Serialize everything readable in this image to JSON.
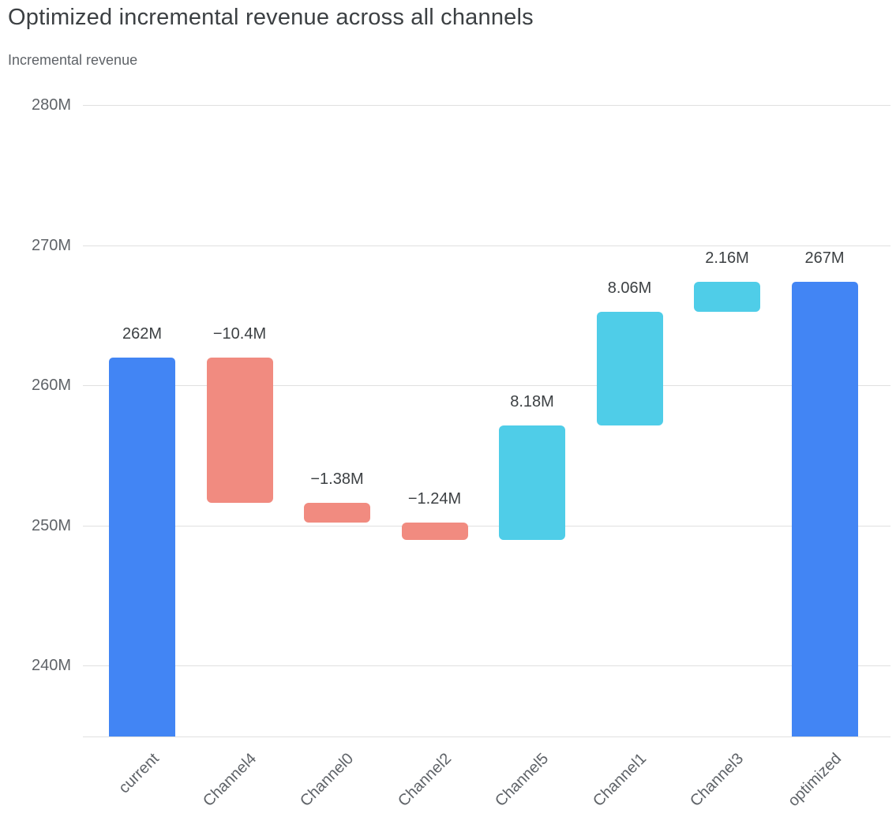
{
  "title": "Optimized incremental revenue across all channels",
  "subtitle": "Incremental revenue",
  "chart_data": {
    "type": "bar",
    "subtype": "waterfall",
    "title": "Optimized incremental revenue across all channels",
    "xlabel": "",
    "ylabel": "Incremental revenue",
    "unit": "M",
    "grid": true,
    "legend": null,
    "categories": [
      "current",
      "Channel4",
      "Channel0",
      "Channel2",
      "Channel5",
      "Channel1",
      "Channel3",
      "optimized"
    ],
    "bars": [
      {
        "category": "current",
        "role": "total",
        "start": 0,
        "end": 262,
        "value": 262,
        "label": "262M"
      },
      {
        "category": "Channel4",
        "role": "decrease",
        "start": 262,
        "end": 251.6,
        "value": -10.4,
        "label": "−10.4M"
      },
      {
        "category": "Channel0",
        "role": "decrease",
        "start": 251.6,
        "end": 250.22,
        "value": -1.38,
        "label": "−1.38M"
      },
      {
        "category": "Channel2",
        "role": "decrease",
        "start": 250.22,
        "end": 248.98,
        "value": -1.24,
        "label": "−1.24M"
      },
      {
        "category": "Channel5",
        "role": "increase",
        "start": 248.98,
        "end": 257.16,
        "value": 8.18,
        "label": "8.18M"
      },
      {
        "category": "Channel1",
        "role": "increase",
        "start": 257.16,
        "end": 265.22,
        "value": 8.06,
        "label": "8.06M"
      },
      {
        "category": "Channel3",
        "role": "increase",
        "start": 265.22,
        "end": 267.38,
        "value": 2.16,
        "label": "2.16M"
      },
      {
        "category": "optimized",
        "role": "total",
        "start": 0,
        "end": 267.38,
        "value": 267.38,
        "label": "267M"
      }
    ],
    "y_axis": {
      "ticks": [
        {
          "label": "280M",
          "value": 280
        },
        {
          "label": "270M",
          "value": 270
        },
        {
          "label": "260M",
          "value": 260
        },
        {
          "label": "250M",
          "value": 250
        },
        {
          "label": "240M",
          "value": 240
        }
      ],
      "min": 234.96,
      "max": 280
    },
    "colors": {
      "total": "#4285f4",
      "decrease": "#f18b80",
      "increase": "#4fcde8",
      "gridline": "#e0e0e0",
      "axis_line": "#e0e0e0",
      "tick_label": "#5f6368",
      "category_label": "#5f6368",
      "data_label": "#3c4043",
      "title": "#3c4043",
      "subtitle": "#5f6368"
    }
  }
}
